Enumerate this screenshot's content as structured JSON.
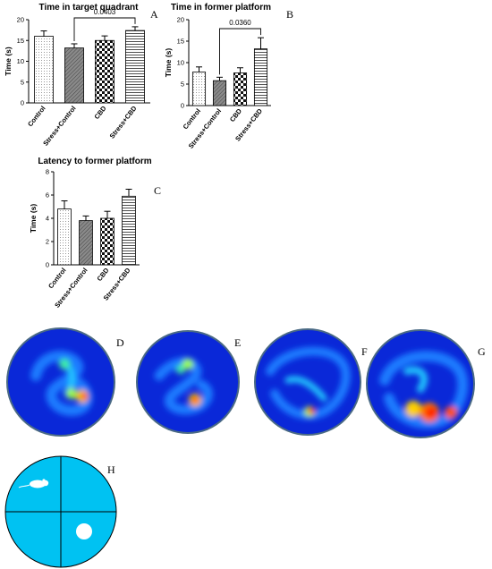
{
  "chart_data": [
    {
      "type": "bar",
      "panel": "A",
      "title": "Time in target quadrant",
      "ylabel": "Time (s)",
      "ylim": [
        0,
        20
      ],
      "yticks": [
        "0",
        "5",
        "10",
        "15",
        "20"
      ],
      "categories": [
        "Control",
        "Stress+Control",
        "CBD",
        "Stress+CBD"
      ],
      "values": [
        16.0,
        13.2,
        15.0,
        17.4
      ],
      "errors": [
        1.3,
        1.0,
        1.1,
        0.9
      ],
      "p_value": "0.0403"
    },
    {
      "type": "bar",
      "panel": "B",
      "title": "Time in former platform",
      "ylabel": "Time (s)",
      "ylim": [
        0,
        20
      ],
      "yticks": [
        "0",
        "5",
        "10",
        "15",
        "20"
      ],
      "categories": [
        "Control",
        "Stress+Control",
        "CBD",
        "Stress+CBD"
      ],
      "values": [
        7.8,
        5.8,
        7.6,
        13.2
      ],
      "errors": [
        1.2,
        0.8,
        1.2,
        2.6
      ],
      "p_value": "0.0360"
    },
    {
      "type": "bar",
      "panel": "C",
      "title": "Latency to former platform",
      "ylabel": "Time (s)",
      "ylim": [
        0,
        8
      ],
      "yticks": [
        "0",
        "2",
        "4",
        "6",
        "8"
      ],
      "categories": [
        "Control",
        "Stress+Control",
        "CBD",
        "Stress+CBD"
      ],
      "values": [
        4.8,
        3.8,
        4.0,
        5.9
      ],
      "errors": [
        0.7,
        0.4,
        0.6,
        0.6
      ],
      "p_value": ""
    }
  ],
  "heatmaps": [
    "D",
    "E",
    "F",
    "G"
  ],
  "diagram": {
    "label": "H"
  },
  "colors": {
    "pool": "#00c2f2",
    "heat_bg": "#0a28d8",
    "rim": "#4a6a85"
  }
}
